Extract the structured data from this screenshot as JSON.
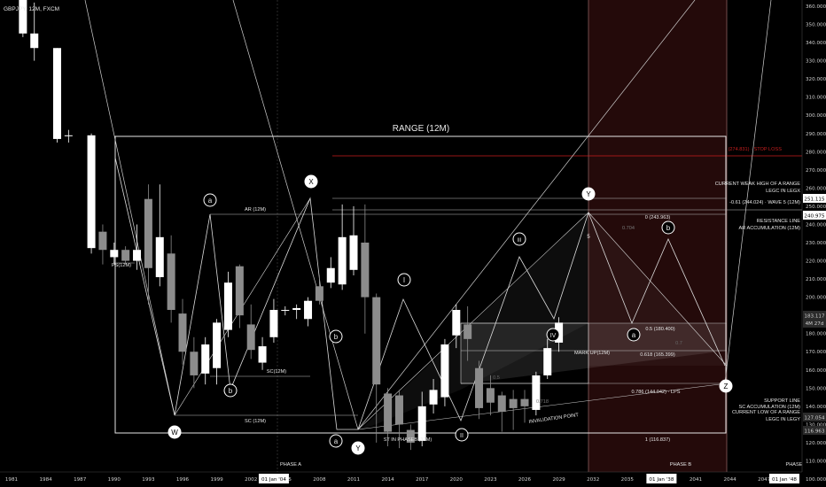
{
  "symbol_header": "GBPJPY, 12M, FXCM",
  "chart_data": {
    "type": "candlestick",
    "x_ticks": [
      "1981",
      "1984",
      "1987",
      "1990",
      "1993",
      "1996",
      "1999",
      "2002",
      "2005",
      "2008",
      "2011",
      "2014",
      "2017",
      "2020",
      "2023",
      "2026",
      "2029",
      "2032",
      "2035",
      "2038",
      "2041",
      "2044",
      "2047"
    ],
    "x_highlight_labels": [
      "01 Jan '04",
      "01 Jan '38",
      "01 Jan '48"
    ],
    "y_ticks": [
      100,
      110,
      120,
      130,
      140,
      150,
      160,
      170,
      180,
      190,
      200,
      210,
      220,
      230,
      240,
      250,
      260,
      270,
      280,
      290,
      300,
      310,
      320,
      330,
      340,
      350,
      360
    ],
    "ylim": [
      100,
      362
    ],
    "price_tags": [
      "251.115",
      "240.975",
      "183.117",
      "4M 27d",
      "127.054",
      "116.963"
    ],
    "candles": [
      {
        "t": 1982,
        "o": 345,
        "c": 370,
        "h": 375,
        "l": 343
      },
      {
        "t": 1983,
        "o": 337,
        "c": 345,
        "h": 362,
        "l": 330
      },
      {
        "t": 1985,
        "o": 287,
        "c": 337,
        "h": 337,
        "l": 285
      },
      {
        "t": 1986,
        "o": 289,
        "c": 289,
        "h": 292,
        "l": 285
      },
      {
        "t": 1988,
        "o": 227,
        "c": 289,
        "h": 290,
        "l": 224
      },
      {
        "t": 1989,
        "o": 236,
        "c": 226,
        "h": 240,
        "l": 218
      },
      {
        "t": 1990,
        "o": 222,
        "c": 226,
        "h": 230,
        "l": 218
      },
      {
        "t": 1991,
        "o": 226,
        "c": 220,
        "h": 228,
        "l": 218
      },
      {
        "t": 1992,
        "o": 220,
        "c": 226,
        "h": 240,
        "l": 215
      },
      {
        "t": 1993,
        "o": 254,
        "c": 216,
        "h": 262,
        "l": 196
      },
      {
        "t": 1994,
        "o": 211,
        "c": 233,
        "h": 262,
        "l": 206
      },
      {
        "t": 1995,
        "o": 224,
        "c": 193,
        "h": 234,
        "l": 186
      },
      {
        "t": 1996,
        "o": 191,
        "c": 170,
        "h": 199,
        "l": 163
      },
      {
        "t": 1997,
        "o": 170,
        "c": 157,
        "h": 178,
        "l": 150
      },
      {
        "t": 1998,
        "o": 158,
        "c": 174,
        "h": 178,
        "l": 152
      },
      {
        "t": 1999,
        "o": 161,
        "c": 186,
        "h": 188,
        "l": 152
      },
      {
        "t": 2000,
        "o": 182,
        "c": 208,
        "h": 214,
        "l": 178
      },
      {
        "t": 2001,
        "o": 217,
        "c": 190,
        "h": 218,
        "l": 183
      },
      {
        "t": 2002,
        "o": 185,
        "c": 171,
        "h": 196,
        "l": 166
      },
      {
        "t": 2003,
        "o": 164,
        "c": 173,
        "h": 178,
        "l": 160
      },
      {
        "t": 2004,
        "o": 178,
        "c": 193,
        "h": 199,
        "l": 175
      },
      {
        "t": 2005,
        "o": 193,
        "c": 193,
        "h": 195,
        "l": 190
      },
      {
        "t": 2006,
        "o": 193,
        "c": 194,
        "h": 196,
        "l": 188
      },
      {
        "t": 2007,
        "o": 188,
        "c": 198,
        "h": 200,
        "l": 184
      },
      {
        "t": 2008,
        "o": 206,
        "c": 198,
        "h": 212,
        "l": 196
      },
      {
        "t": 2009,
        "o": 208,
        "c": 216,
        "h": 222,
        "l": 205
      },
      {
        "t": 2010,
        "o": 207,
        "c": 233,
        "h": 251,
        "l": 204
      },
      {
        "t": 2011,
        "o": 215,
        "c": 234,
        "h": 250,
        "l": 212
      },
      {
        "t": 2012,
        "o": 230,
        "c": 200,
        "h": 251,
        "l": 180
      },
      {
        "t": 2013,
        "o": 200,
        "c": 152,
        "h": 202,
        "l": 120
      },
      {
        "t": 2014,
        "o": 147,
        "c": 126,
        "h": 150,
        "l": 118
      },
      {
        "t": 2015,
        "o": 146,
        "c": 130,
        "h": 149,
        "l": 117
      },
      {
        "t": 2016,
        "o": 127,
        "c": 120,
        "h": 130,
        "l": 116
      },
      {
        "t": 2017,
        "o": 121,
        "c": 140,
        "h": 148,
        "l": 118
      },
      {
        "t": 2018,
        "o": 141,
        "c": 149,
        "h": 155,
        "l": 136
      },
      {
        "t": 2019,
        "o": 145,
        "c": 174,
        "h": 177,
        "l": 140
      },
      {
        "t": 2020,
        "o": 179,
        "c": 193,
        "h": 196,
        "l": 172
      },
      {
        "t": 2021,
        "o": 185,
        "c": 177,
        "h": 195,
        "l": 165
      },
      {
        "t": 2022,
        "o": 161,
        "c": 139,
        "h": 165,
        "l": 133
      },
      {
        "t": 2023,
        "o": 150,
        "c": 142,
        "h": 157,
        "l": 135
      },
      {
        "t": 2024,
        "o": 146,
        "c": 137,
        "h": 148,
        "l": 126
      },
      {
        "t": 2025,
        "o": 144,
        "c": 139,
        "h": 149,
        "l": 127
      },
      {
        "t": 2026,
        "o": 144,
        "c": 140,
        "h": 149,
        "l": 131
      },
      {
        "t": 2027,
        "o": 138,
        "c": 157,
        "h": 159,
        "l": 135
      },
      {
        "t": 2028,
        "o": 157,
        "c": 172,
        "h": 177,
        "l": 155
      },
      {
        "t": 2029,
        "o": 175,
        "c": 186,
        "h": 189,
        "l": 170
      }
    ]
  },
  "annotations": {
    "range_title": "RANGE (12M)",
    "ar": "AR (12M)",
    "ps": "PS(12M)",
    "sc_upper": "SC(12M)",
    "sc_lower": "SC (12M)",
    "st": "ST IN PHASEB (12M)",
    "mark_up": "MARK UP(12M)",
    "invalidation": "INVALIDATION POINT",
    "phase_a": "PHASE A",
    "phase_b": "PHASE B",
    "phase_c": "PHASE",
    "fib_0": "0 (243.963)",
    "fib_05": "0.5 (180.400)",
    "fib_0618": "0.618 (165.399)",
    "fib_0786": "0.786 (144.042) · LPS",
    "fib_1": "1 (116.837)",
    "ratio_0704": "0.704",
    "ratio_0718": "0.718",
    "ratio_0": "0.5",
    "ratio_07": "0.7",
    "wave5_label": "5",
    "stop_loss": "(274.831) · STOP LOSS",
    "weak_high_1": "CURRENT WEAK HIGH OF A RANGE",
    "weak_high_2": "LEGC IN LEGX",
    "wave5": "-0.61 (244.024) · WAVE 5 (12M)",
    "resistance_1": "RESISTANCE LINE",
    "resistance_2": "AR ACCUMULATION (12M)",
    "support_1": "SUPPORT LINE",
    "support_2": "SC ACCUMULATION (12M)",
    "weak_low_1": "CURRENT LOW OF A RANGE",
    "weak_low_2": "LEGC IN LEGY",
    "circles": {
      "a1": "a",
      "X": "X",
      "b_sc": "b",
      "b_ar": "b",
      "W": "W",
      "a_low": "a",
      "Y": "Y",
      "I": "I",
      "II": "II",
      "III": "III",
      "IV": "IV",
      "a_fut": "a",
      "b_fut": "b",
      "Z": "Z",
      "top": "Y"
    }
  },
  "colors": {
    "bull": "#ffffff",
    "bear": "#8c8c8c",
    "stop_line": "#c81e1e",
    "future_zone": "#2a0c0c",
    "accent": "#ffffff"
  }
}
